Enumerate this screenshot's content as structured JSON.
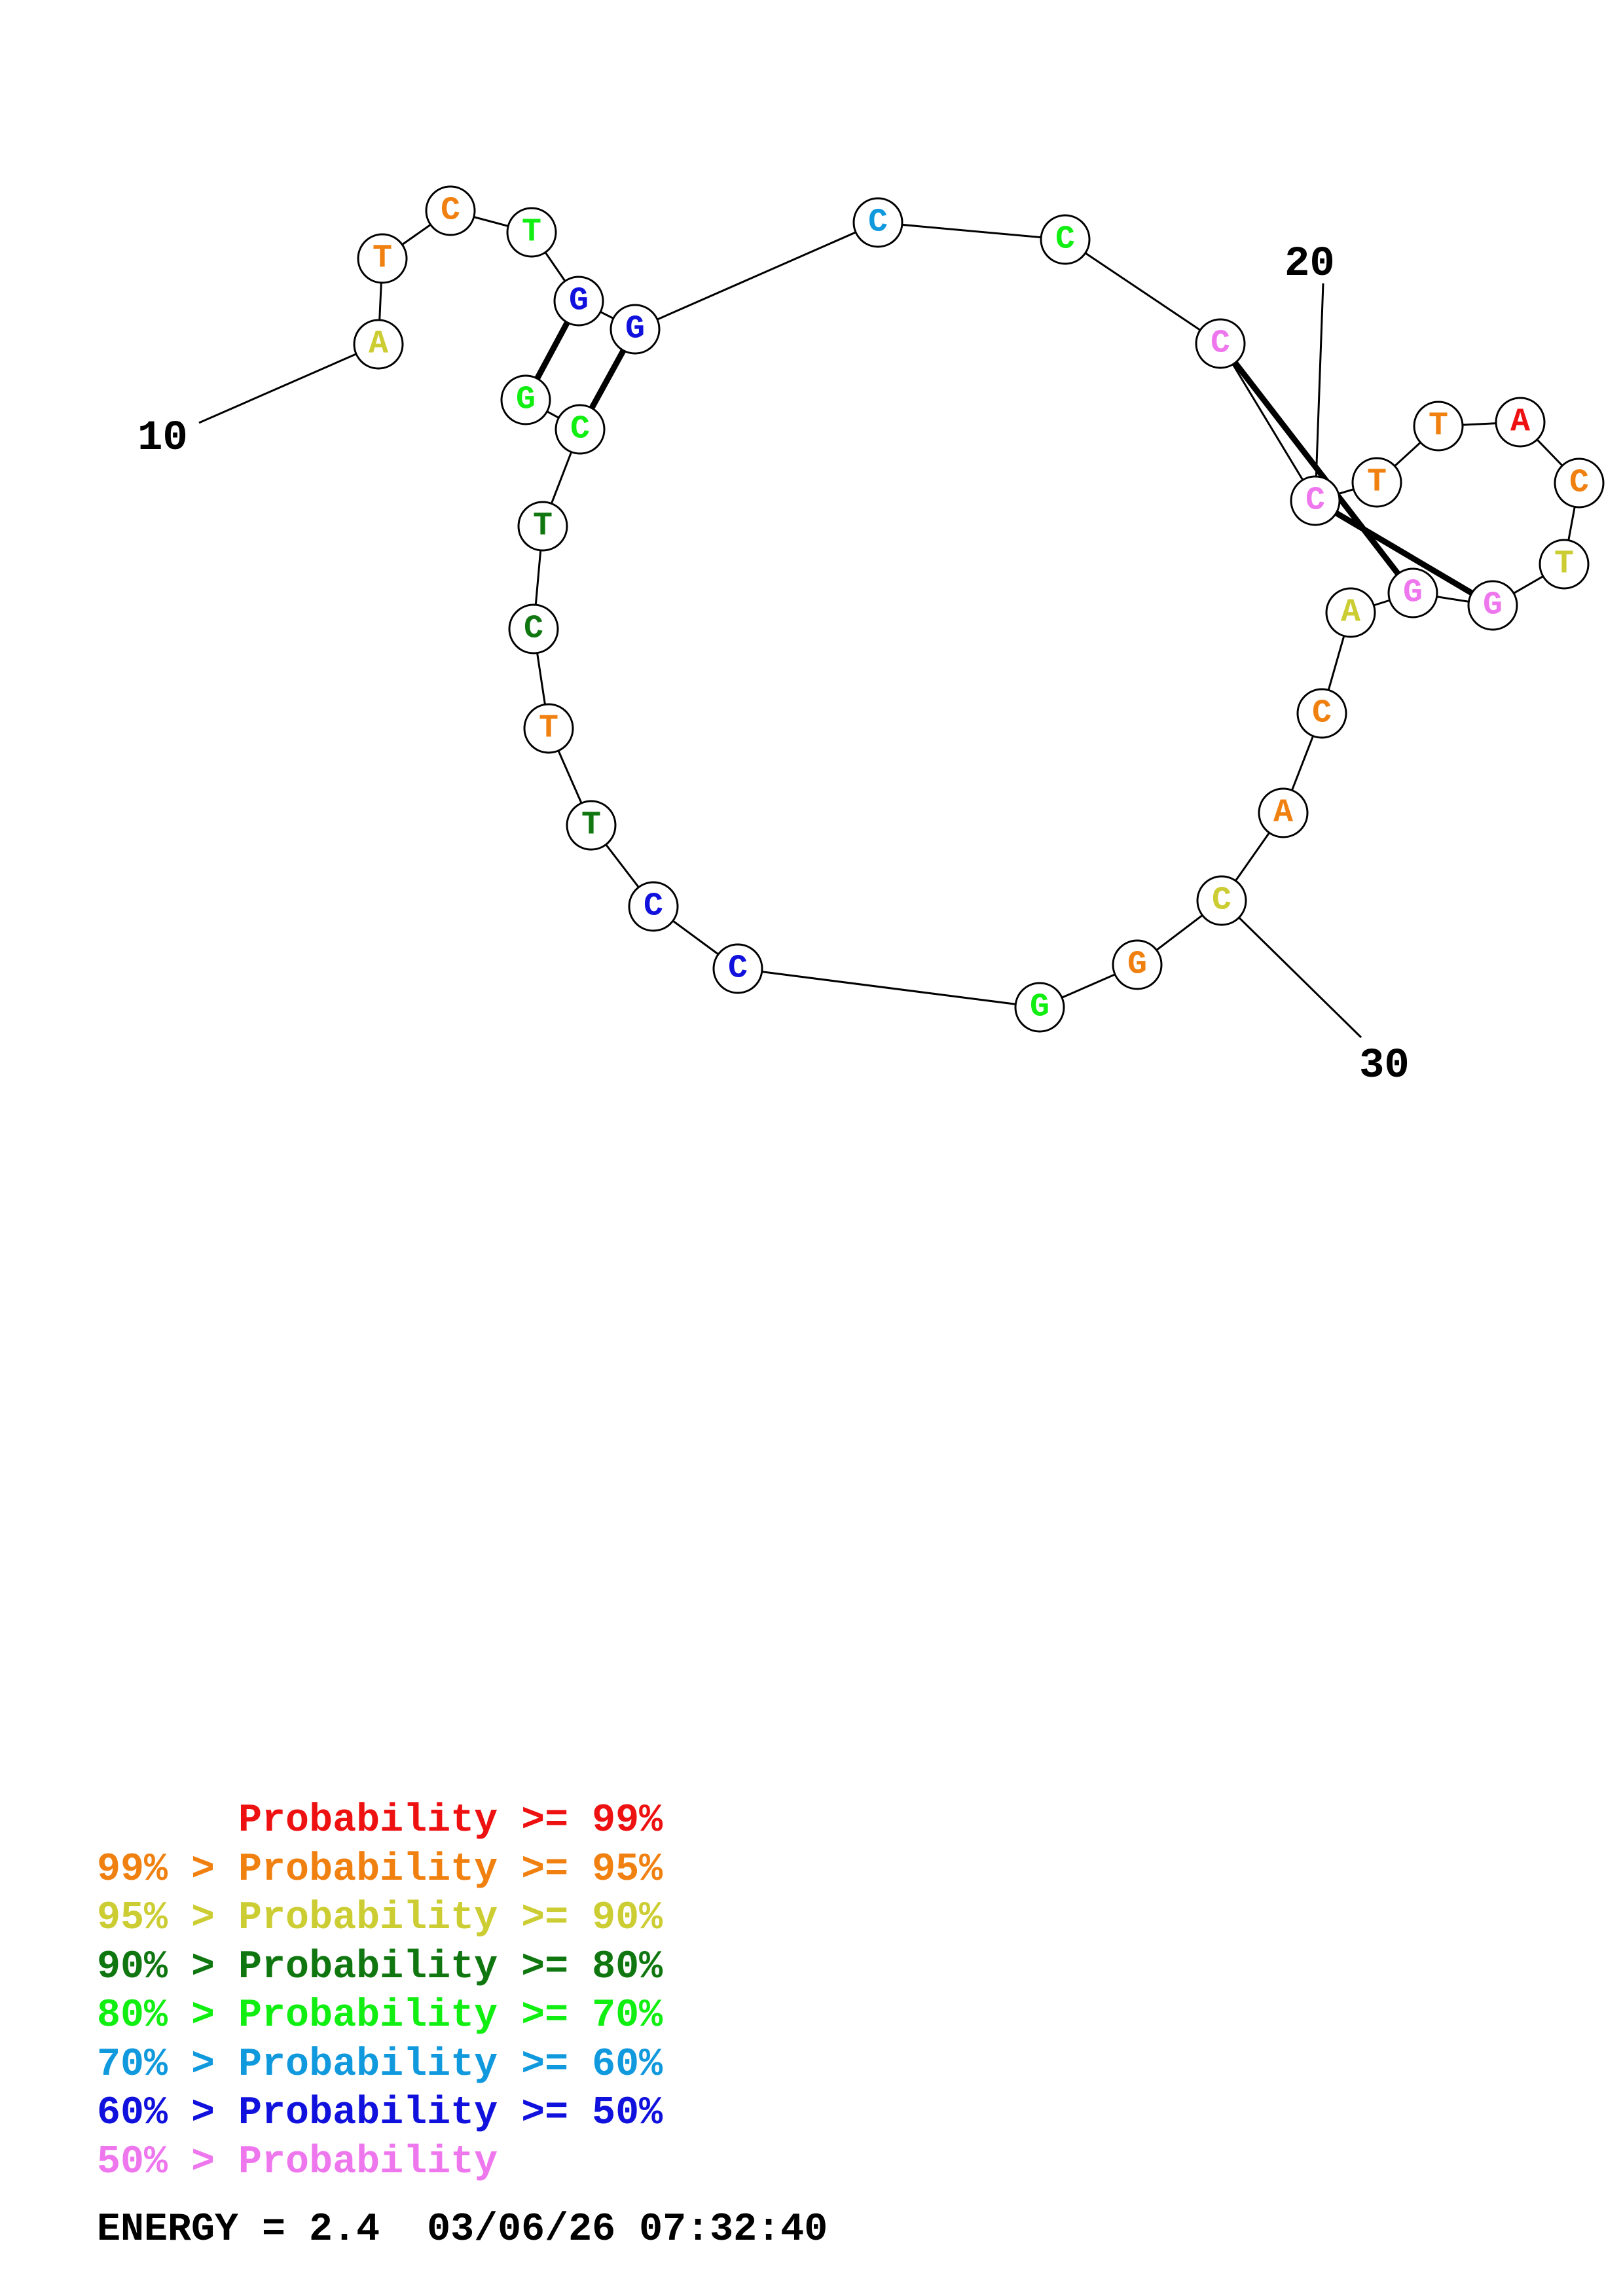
{
  "colors": {
    "p99": "#ee1111",
    "p95": "#f08010",
    "p90": "#cccc33",
    "p80": "#107710",
    "p70": "#11ee11",
    "p60": "#1199dd",
    "p50": "#1111dd",
    "plt50": "#ee77ee"
  },
  "structure": {
    "nucleotides": [
      {
        "base": "A",
        "color": "p90"
      },
      {
        "base": "T",
        "color": "p95"
      },
      {
        "base": "C",
        "color": "p95"
      },
      {
        "base": "T",
        "color": "p70"
      },
      {
        "base": "G",
        "color": "p50"
      },
      {
        "base": "G",
        "color": "p50"
      },
      {
        "base": "C",
        "color": "p60"
      },
      {
        "base": "C",
        "color": "p70"
      },
      {
        "base": "C",
        "color": "plt50"
      },
      {
        "base": "C",
        "color": "plt50"
      },
      {
        "base": "T",
        "color": "p95"
      },
      {
        "base": "T",
        "color": "p95"
      },
      {
        "base": "A",
        "color": "p99"
      },
      {
        "base": "C",
        "color": "p95"
      },
      {
        "base": "T",
        "color": "p90"
      },
      {
        "base": "G",
        "color": "plt50"
      },
      {
        "base": "G",
        "color": "plt50"
      },
      {
        "base": "A",
        "color": "p90"
      },
      {
        "base": "C",
        "color": "p95"
      },
      {
        "base": "A",
        "color": "p95"
      },
      {
        "base": "C",
        "color": "p90"
      },
      {
        "base": "G",
        "color": "p95"
      },
      {
        "base": "G",
        "color": "p70"
      },
      {
        "base": "C",
        "color": "p50"
      },
      {
        "base": "C",
        "color": "p50"
      },
      {
        "base": "T",
        "color": "p80"
      },
      {
        "base": "T",
        "color": "p95"
      },
      {
        "base": "C",
        "color": "p80"
      },
      {
        "base": "T",
        "color": "p80"
      },
      {
        "base": "C",
        "color": "p70"
      },
      {
        "base": "G",
        "color": "p70"
      }
    ],
    "position_labels": [
      "10",
      "20",
      "30"
    ]
  },
  "legend": [
    {
      "prefix": "    ",
      "range": "Probability >= 99%",
      "color": "p99"
    },
    {
      "prefix": "99% > ",
      "range": "Probability >= 95%",
      "color": "p95"
    },
    {
      "prefix": "95% > ",
      "range": "Probability >= 90%",
      "color": "p90"
    },
    {
      "prefix": "90% > ",
      "range": "Probability >= 80%",
      "color": "p80"
    },
    {
      "prefix": "80% > ",
      "range": "Probability >= 70%",
      "color": "p70"
    },
    {
      "prefix": "70% > ",
      "range": "Probability >= 60%",
      "color": "p60"
    },
    {
      "prefix": "60% > ",
      "range": "Probability >= 50%",
      "color": "p50"
    },
    {
      "prefix": "50% > ",
      "range": "Probability",
      "color": "plt50"
    }
  ],
  "footer": {
    "energy": "ENERGY = 2.4",
    "timestamp": "03/06/26 07:32:40"
  }
}
